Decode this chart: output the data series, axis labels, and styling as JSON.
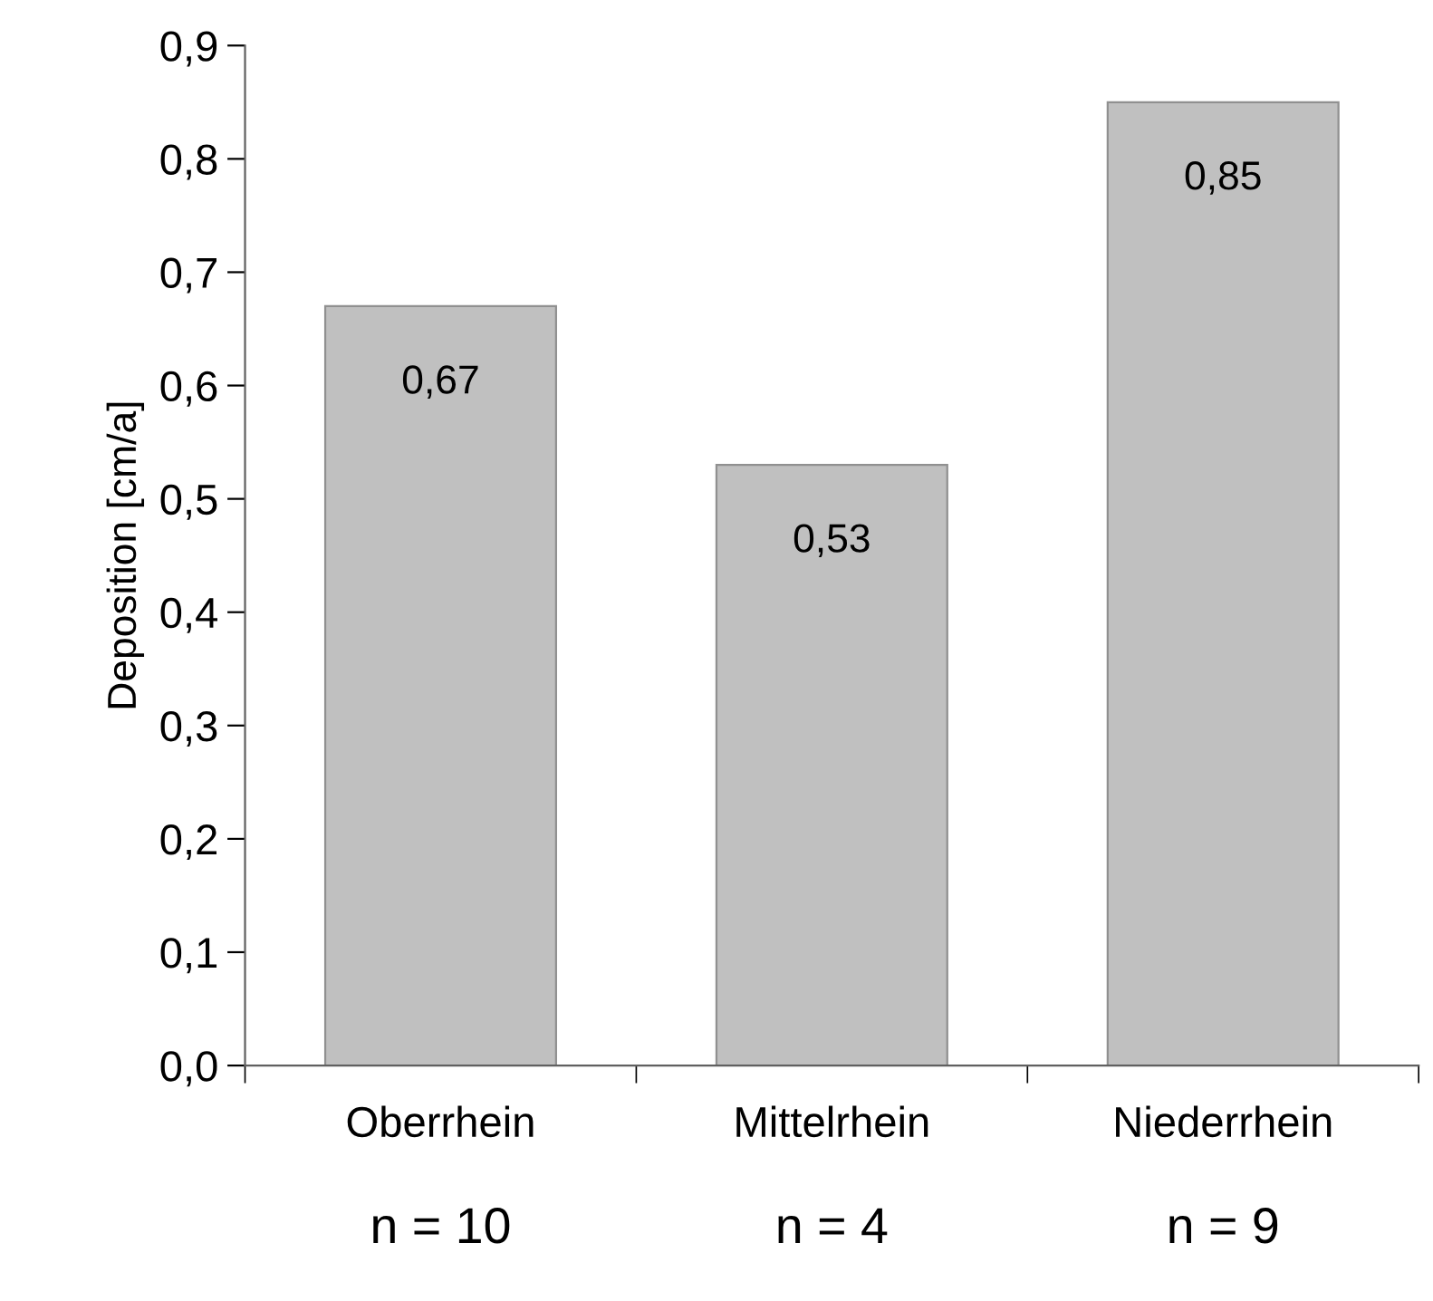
{
  "chart_data": {
    "type": "bar",
    "ylabel": "Deposition [cm/a]",
    "categories": [
      "Oberrhein",
      "Mittelrhein",
      "Niederrhein"
    ],
    "values": [
      0.67,
      0.53,
      0.85
    ],
    "value_labels": [
      "0,67",
      "0,53",
      "0,85"
    ],
    "color": "#c0c0c0",
    "ylim": [
      0,
      0.9
    ],
    "yticks": [
      {
        "value": 0,
        "label": "0,0"
      },
      {
        "value": 0.1,
        "label": "0,1"
      },
      {
        "value": 0.2,
        "label": "0,2"
      },
      {
        "value": 0.3,
        "label": "0,3"
      },
      {
        "value": 0.4,
        "label": "0,4"
      },
      {
        "value": 0.5,
        "label": "0,5"
      },
      {
        "value": 0.6,
        "label": "0,6"
      },
      {
        "value": 0.7,
        "label": "0,7"
      },
      {
        "value": 0.8,
        "label": "0,8"
      },
      {
        "value": 0.9,
        "label": "0,9"
      }
    ],
    "annotations": [
      "n = 10",
      "n = 4",
      "n = 9"
    ],
    "grid": false,
    "legend": false
  }
}
